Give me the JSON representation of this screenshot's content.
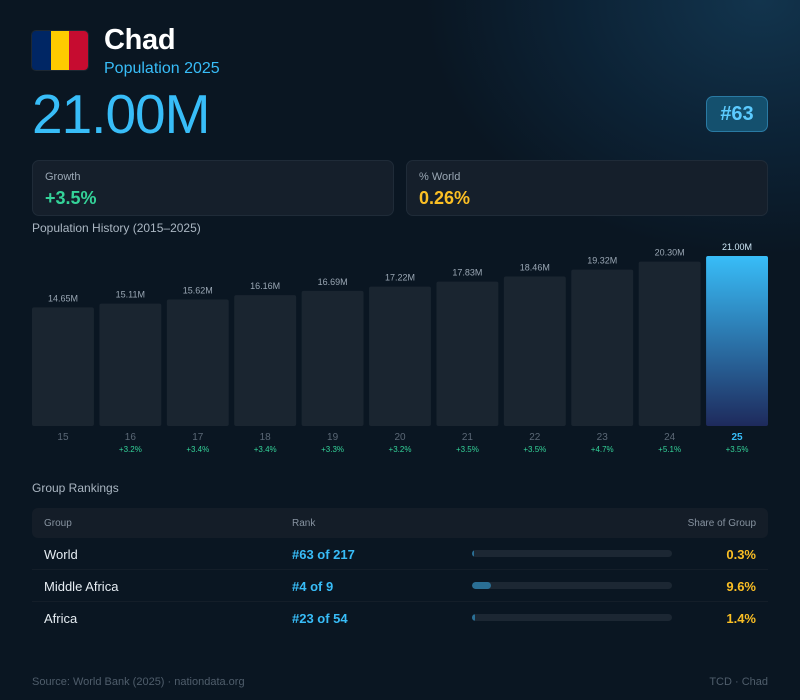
{
  "header": {
    "country": "Chad",
    "subtitle": "Population 2025",
    "population": "21.00M",
    "rank_badge": "#63",
    "flag_colors": [
      "#002664",
      "#fecb00",
      "#c60c30"
    ]
  },
  "stats": {
    "growth_label": "Growth",
    "growth_value": "+3.5%",
    "world_label": "% World",
    "world_value": "0.26%"
  },
  "history_title": "Population History (2015–2025)",
  "chart_data": {
    "type": "bar",
    "categories": [
      "15",
      "16",
      "17",
      "18",
      "19",
      "20",
      "21",
      "22",
      "23",
      "24",
      "25"
    ],
    "values": [
      14.65,
      15.11,
      15.62,
      16.16,
      16.69,
      17.22,
      17.83,
      18.46,
      19.32,
      20.3,
      21.0
    ],
    "value_labels": [
      "14.65M",
      "15.11M",
      "15.62M",
      "16.16M",
      "16.69M",
      "17.22M",
      "17.83M",
      "18.46M",
      "19.32M",
      "20.30M",
      "21.00M"
    ],
    "growth_labels": [
      "",
      "+3.2%",
      "+3.4%",
      "+3.4%",
      "+3.3%",
      "+3.2%",
      "+3.5%",
      "+3.5%",
      "+4.7%",
      "+5.1%",
      "+3.5%"
    ],
    "highlight_index": 10,
    "ylim": [
      0,
      21.0
    ],
    "colors": {
      "bar": "#1a2530",
      "highlight_top": "#38bdf8",
      "highlight_bottom": "#1e2a5c",
      "value_label": "#9aa7b4",
      "tick": "#5b6876",
      "tick_highlight": "#38bdf8",
      "growth": "#34d399"
    }
  },
  "rankings": {
    "title": "Group Rankings",
    "headers": {
      "group": "Group",
      "rank": "Rank",
      "share": "Share of Group"
    },
    "rows": [
      {
        "group": "World",
        "rank": "#63 of 217",
        "share": "0.3%",
        "share_value": 0.003
      },
      {
        "group": "Middle Africa",
        "rank": "#4 of 9",
        "share": "9.6%",
        "share_value": 0.096
      },
      {
        "group": "Africa",
        "rank": "#23 of 54",
        "share": "1.4%",
        "share_value": 0.014
      }
    ]
  },
  "footer": {
    "source": "Source: World Bank (2025) · nationdata.org",
    "code": "TCD · Chad"
  }
}
